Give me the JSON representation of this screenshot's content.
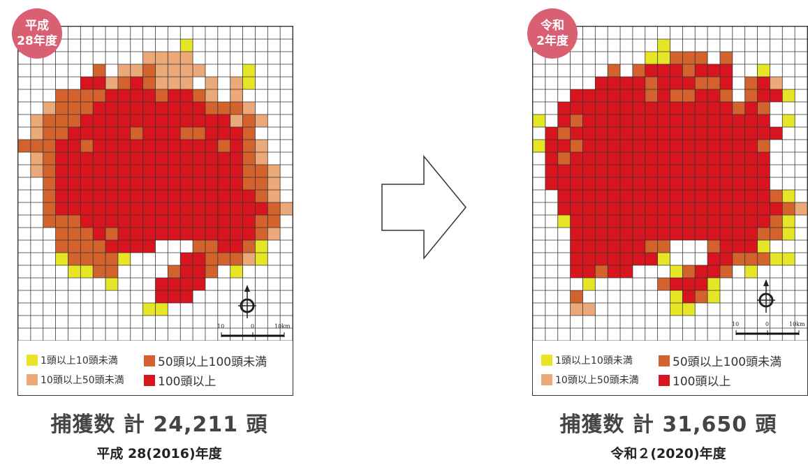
{
  "colors": {
    "lvl1": "#e6e627",
    "lvl2": "#eba878",
    "lvl3": "#d3622d",
    "lvl4": "#d8141f",
    "badge": "#d95f73",
    "grid_line": "#333333"
  },
  "legend": [
    {
      "label": "1頭以上10頭未満",
      "color_key": "lvl1"
    },
    {
      "label": "50頭以上100頭未満",
      "color_key": "lvl3"
    },
    {
      "label": "10頭以上50頭未満",
      "color_key": "lvl2"
    },
    {
      "label": "100頭以上",
      "color_key": "lvl4"
    }
  ],
  "maps": [
    {
      "badge_line1": "平成",
      "badge_line2": "28年度",
      "total": "捕獲数 計 24,211 頭",
      "caption": "平成 28(2016)年度",
      "scale": {
        "left": "10",
        "mid": "0",
        "right": "10km"
      },
      "cells": [
        "......................",
        ".............1........",
        "..........2222........",
        "......3.2232222...1...",
        ".....442343222.2.21...",
        "...3333444434432.2....",
        "..23334444444443332...",
        ".2333444444444444232..",
        ".233444443444334443...",
        "33344344444444443432..",
        ".2344444444444444432..",
        ".23444444444444444332.",
        "..3444444444444444332.",
        "..3444444444444444432.",
        "..34444444444444444432",
        "..3334444444444444433.",
        "...333434444444444432.",
        "...33334444...334431..",
        "...133331....4433321..",
        "....1133....3443.1....",
        ".......1...4444.......",
        "...........444........",
        "..........11..........",
        "......................",
        "......................"
      ]
    },
    {
      "badge_line1": "令和",
      "badge_line2": "2年度",
      "total": "捕獲数 計 31,650 頭",
      "caption": "令和２(2020)年度",
      "scale": {
        "left": "10",
        "mid": "0",
        "right": "10km"
      },
      "cells": [
        "......................",
        "..........1...........",
        ".........11333.3......",
        "......3.34443444..1...",
        ".....44443444334.342..",
        "...4444443433443.3441.",
        "..44444444444444343...",
        "1.43444444444444444.1.",
        ".4344444444444444444..",
        "1443444444444444443...",
        ".434444444444444444...",
        ".444444444444444444...",
        ".444444444444444444...",
        "..4444444444444444431.",
        "..44444444444444444432",
        "..1444444444444444431.",
        "...444444444444444331.",
        "...44444433...34441...",
        "...44444441...4433311.",
        "...44344...13443.1....",
        "....1.....34441.......",
        "...3.......1431.......",
        "...22......11.........",
        "......................",
        "......................"
      ]
    }
  ]
}
